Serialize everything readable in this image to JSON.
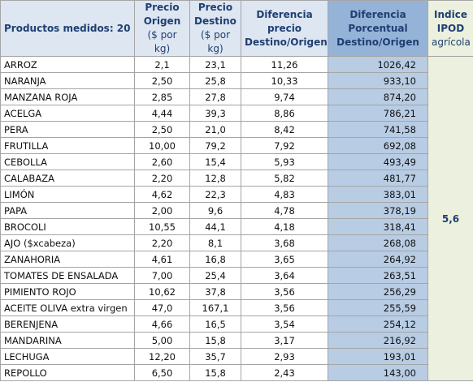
{
  "table": {
    "columns": [
      {
        "title": "Productos medidos: 20"
      },
      {
        "title": "Precio Origen",
        "unit": "($ por kg)"
      },
      {
        "title": "Precio Destino",
        "unit": "($ por kg)"
      },
      {
        "title": "Diferencia precio Destino/Origen"
      },
      {
        "title": "Diferencia Porcentual Destino/Origen"
      },
      {
        "title": "Indice IPOD",
        "unit": "agrícola"
      }
    ],
    "rows": [
      [
        "ARROZ",
        "2,1",
        "23,1",
        "11,26",
        "1026,42"
      ],
      [
        "NARANJA",
        "2,50",
        "25,8",
        "10,33",
        "933,10"
      ],
      [
        "MANZANA ROJA",
        "2,85",
        "27,8",
        "9,74",
        "874,20"
      ],
      [
        "ACELGA",
        "4,44",
        "39,3",
        "8,86",
        "786,21"
      ],
      [
        "PERA",
        "2,50",
        "21,0",
        "8,42",
        "741,58"
      ],
      [
        "FRUTILLA",
        "10,00",
        "79,2",
        "7,92",
        "692,08"
      ],
      [
        "CEBOLLA",
        "2,60",
        "15,4",
        "5,93",
        "493,49"
      ],
      [
        "CALABAZA",
        "2,20",
        "12,8",
        "5,82",
        "481,77"
      ],
      [
        "LIMÓN",
        "4,62",
        "22,3",
        "4,83",
        "383,01"
      ],
      [
        "PAPA",
        "2,00",
        "9,6",
        "4,78",
        "378,19"
      ],
      [
        "BROCOLI",
        "10,55",
        "44,1",
        "4,18",
        "318,41"
      ],
      [
        "AJO  ($xcabeza)",
        "2,20",
        "8,1",
        "3,68",
        "268,08"
      ],
      [
        "ZANAHORIA",
        "4,61",
        "16,8",
        "3,65",
        "264,92"
      ],
      [
        "TOMATES DE ENSALADA",
        "7,00",
        "25,4",
        "3,64",
        "263,51"
      ],
      [
        "PIMIENTO ROJO",
        "10,62",
        "37,8",
        "3,56",
        "256,29"
      ],
      [
        "ACEITE OLIVA extra virgen",
        "47,0",
        "167,1",
        "3,56",
        "255,59"
      ],
      [
        "BERENJENA",
        "4,66",
        "16,5",
        "3,54",
        "254,12"
      ],
      [
        "MANDARINA",
        "5,00",
        "15,8",
        "3,17",
        "216,92"
      ],
      [
        "LECHUGA",
        "12,20",
        "35,7",
        "2,93",
        "193,01"
      ],
      [
        "REPOLLO",
        "6,50",
        "15,8",
        "2,43",
        "143,00"
      ]
    ],
    "ipod_value": "5,6"
  }
}
